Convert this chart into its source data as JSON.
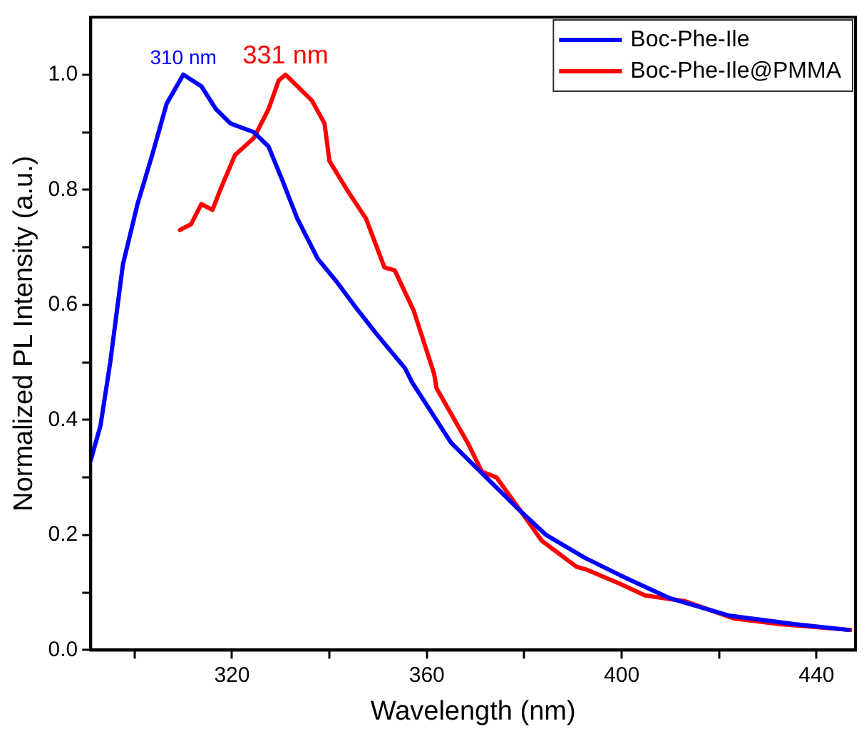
{
  "chart_data": {
    "type": "line",
    "xlabel": "Wavelength (nm)",
    "ylabel": "Normalized PL Intensity (a.u.)",
    "xlim": [
      291,
      448
    ],
    "xticks": [
      {
        "value": 300,
        "label": null
      },
      320,
      {
        "value": 340,
        "label": null
      },
      360,
      {
        "value": 380,
        "label": null
      },
      400,
      {
        "value": 420,
        "label": null
      },
      440
    ],
    "ylim": [
      0,
      1.1
    ],
    "yticks": [
      "0.0",
      {
        "value": 0.1,
        "label": null
      },
      0.2,
      {
        "value": 0.3,
        "label": null
      },
      0.4,
      {
        "value": 0.5,
        "label": null
      },
      0.6,
      {
        "value": 0.7,
        "label": null
      },
      0.8,
      {
        "value": 0.9,
        "label": null
      },
      "1.0"
    ],
    "grid": false,
    "legend": "top right",
    "marker": "none",
    "line_style": "solid",
    "series": [
      {
        "name": "Boc-Phe-Ile",
        "color": "#0000ff",
        "x": [
          291,
          293,
          295,
          297.6,
          300.6,
          303.6,
          306.6,
          310,
          313.7,
          316.7,
          319.7,
          324.5,
          327.5,
          330.4,
          333.4,
          337.6,
          341.5,
          345,
          349.6,
          355.5,
          357,
          365,
          371,
          379.4,
          384.5,
          392.5,
          399.7,
          409.9,
          422,
          435.5,
          446.6
        ],
        "values": [
          0.33,
          0.39,
          0.5,
          0.67,
          0.775,
          0.86,
          0.95,
          1.0,
          0.98,
          0.94,
          0.915,
          0.9,
          0.875,
          0.815,
          0.75,
          0.68,
          0.64,
          0.6,
          0.55,
          0.49,
          0.465,
          0.36,
          0.31,
          0.24,
          0.2,
          0.16,
          0.13,
          0.09,
          0.06,
          0.045,
          0.035
        ]
      },
      {
        "name": "Boc-Phe-Ile@PMMA",
        "color": "#ff0000",
        "x": [
          309.3,
          311.6,
          313.7,
          316,
          317.6,
          320.6,
          324.5,
          327.5,
          329.6,
          331,
          333.4,
          336.4,
          339,
          340,
          343.6,
          347.5,
          351.3,
          353.4,
          357.3,
          361.5,
          362,
          368.4,
          371.3,
          374.3,
          379.4,
          383.6,
          390.7,
          392.7,
          399.7,
          404.8,
          413,
          423,
          432.5,
          446.9
        ],
        "values": [
          0.73,
          0.74,
          0.775,
          0.765,
          0.8,
          0.86,
          0.89,
          0.94,
          0.99,
          1.0,
          0.98,
          0.955,
          0.915,
          0.85,
          0.8,
          0.75,
          0.665,
          0.66,
          0.59,
          0.48,
          0.455,
          0.36,
          0.31,
          0.3,
          0.24,
          0.19,
          0.145,
          0.14,
          0.115,
          0.095,
          0.085,
          0.055,
          0.045,
          0.035
        ]
      }
    ],
    "annotations": [
      {
        "text": "310 nm",
        "x": 310,
        "y": 1.0
      },
      {
        "text": "331 nm",
        "x": 331,
        "y": 1.0
      }
    ]
  }
}
